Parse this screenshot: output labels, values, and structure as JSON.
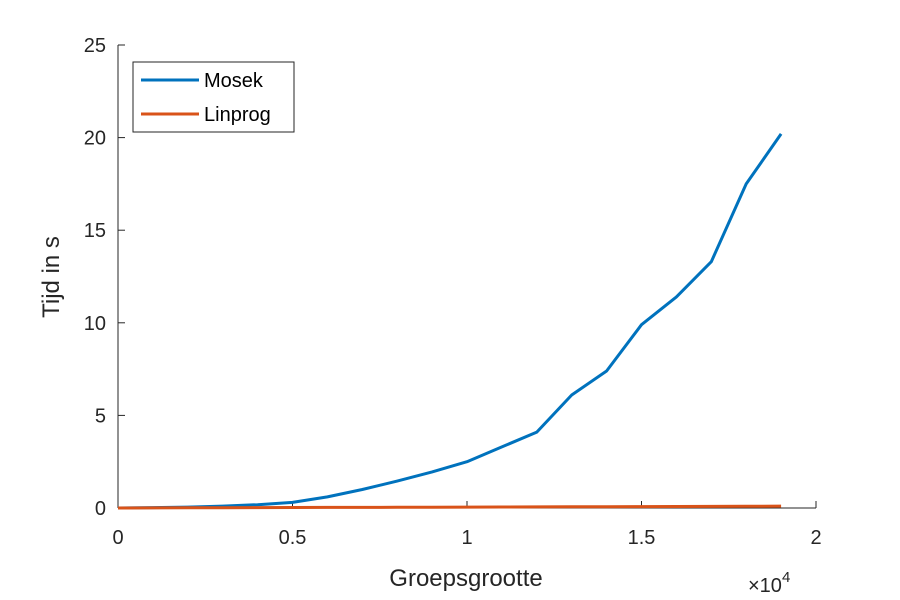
{
  "chart_data": {
    "type": "line",
    "xlabel": "Groepsgrootte",
    "ylabel": "Tijd in s",
    "x_multiplier_base": "×10",
    "x_multiplier_exponent": "4",
    "xlim": [
      0,
      20000
    ],
    "ylim": [
      0,
      25
    ],
    "x_ticks": [
      0,
      5000,
      10000,
      15000,
      20000
    ],
    "x_tick_labels": [
      "0",
      "0.5",
      "1",
      "1.5",
      "2"
    ],
    "y_ticks": [
      0,
      5,
      10,
      15,
      20,
      25
    ],
    "y_tick_labels": [
      "0",
      "5",
      "10",
      "15",
      "20",
      "25"
    ],
    "grid": false,
    "legend_position": "top-left",
    "series": [
      {
        "name": "Mosek",
        "color": "#0072BD",
        "x": [
          0,
          1000,
          2000,
          3000,
          4000,
          5000,
          6000,
          7000,
          8000,
          9000,
          10000,
          11000,
          12000,
          13000,
          14000,
          15000,
          16000,
          17000,
          18000,
          19000
        ],
        "y": [
          0.0,
          0.02,
          0.05,
          0.1,
          0.18,
          0.3,
          0.6,
          1.0,
          1.45,
          1.95,
          2.5,
          3.3,
          4.1,
          6.1,
          7.4,
          9.9,
          11.4,
          13.3,
          17.5,
          20.2
        ]
      },
      {
        "name": "Linprog",
        "color": "#D95319",
        "x": [
          0,
          1000,
          2000,
          3000,
          4000,
          5000,
          6000,
          7000,
          8000,
          9000,
          10000,
          11000,
          12000,
          13000,
          14000,
          15000,
          16000,
          17000,
          18000,
          19000
        ],
        "y": [
          0.0,
          0.005,
          0.01,
          0.015,
          0.02,
          0.025,
          0.03,
          0.035,
          0.04,
          0.045,
          0.05,
          0.055,
          0.06,
          0.065,
          0.07,
          0.075,
          0.08,
          0.085,
          0.09,
          0.1
        ]
      }
    ]
  }
}
